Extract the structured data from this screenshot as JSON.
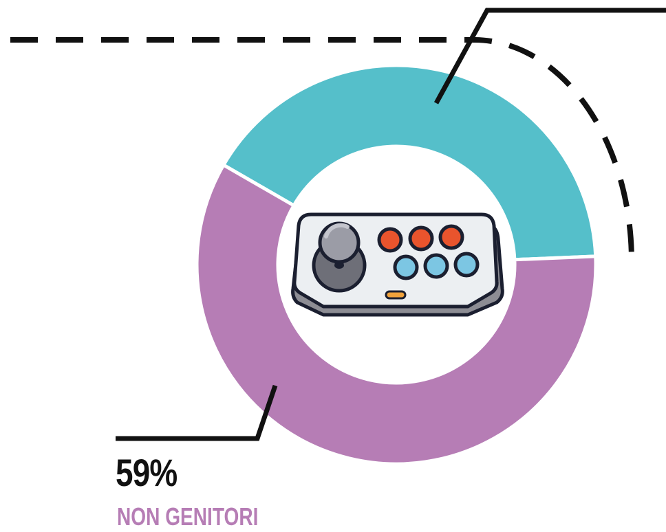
{
  "chart_data": {
    "type": "pie",
    "donut": true,
    "legend": "none",
    "grid": false,
    "slices": [
      {
        "key": "genitori",
        "value": 41,
        "color": "#55bfca",
        "value_label": "",
        "category_label": ""
      },
      {
        "key": "non-genitori",
        "value": 59,
        "color": "#b67db5",
        "value_label": "59%",
        "category_label": "NON GENITORI"
      }
    ]
  },
  "colors": {
    "text_dark": "#111111",
    "leader_line": "#111111",
    "dashed_guide": "#111111"
  },
  "icons": {
    "center": "arcade-joystick-icon"
  }
}
